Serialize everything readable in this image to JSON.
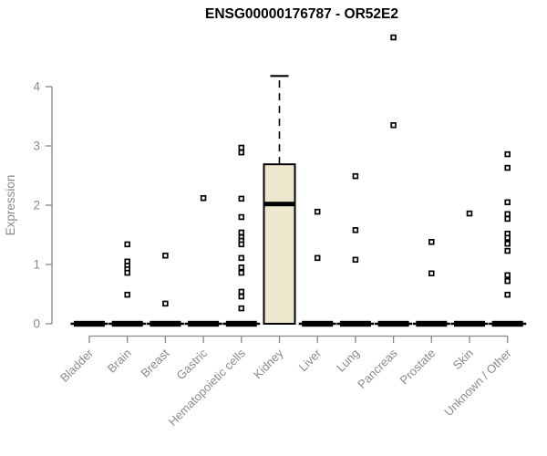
{
  "chart_data": {
    "type": "boxplot",
    "title": "ENSG00000176787 - OR52E2",
    "ylabel": "Expression",
    "xlabel": "",
    "ylim": [
      0,
      4
    ],
    "yticks": [
      0,
      1,
      2,
      3,
      4
    ],
    "grid": false,
    "legend": "none",
    "axis_color": "#878787",
    "text_color": "#8a8a8a",
    "box_fill": "#EDE8CD",
    "box_border": "#000000",
    "categories": [
      "Bladder",
      "Brain",
      "Breast",
      "Gastric",
      "Hematopoietic cells",
      "Kidney",
      "Liver",
      "Lung",
      "Pancreas",
      "Prostate",
      "Skin",
      "Unknown / Other"
    ],
    "series": [
      {
        "name": "Bladder",
        "whisker_low": 0,
        "q1": 0,
        "median": 0,
        "q3": 0,
        "whisker_high": 0,
        "outliers": []
      },
      {
        "name": "Brain",
        "whisker_low": 0,
        "q1": 0,
        "median": 0,
        "q3": 0,
        "whisker_high": 0,
        "outliers": [
          1.34,
          1.05,
          0.98,
          0.92,
          0.86,
          0.49
        ]
      },
      {
        "name": "Breast",
        "whisker_low": 0,
        "q1": 0,
        "median": 0,
        "q3": 0,
        "whisker_high": 0,
        "outliers": [
          1.15,
          0.34
        ]
      },
      {
        "name": "Gastric",
        "whisker_low": 0,
        "q1": 0,
        "median": 0,
        "q3": 0,
        "whisker_high": 0,
        "outliers": [
          2.12
        ]
      },
      {
        "name": "Hematopoietic cells",
        "whisker_low": 0,
        "q1": 0,
        "median": 0,
        "q3": 0,
        "whisker_high": 0,
        "outliers": [
          2.97,
          2.89,
          2.11,
          1.8,
          1.54,
          1.46,
          1.4,
          1.34,
          1.11,
          0.95,
          0.86,
          0.54,
          0.46,
          0.26
        ]
      },
      {
        "name": "Kidney",
        "whisker_low": 0,
        "q1": 0,
        "median": 2.02,
        "q3": 2.69,
        "whisker_high": 4.18,
        "outliers": []
      },
      {
        "name": "Liver",
        "whisker_low": 0,
        "q1": 0,
        "median": 0,
        "q3": 0,
        "whisker_high": 0,
        "outliers": [
          1.89,
          1.11
        ]
      },
      {
        "name": "Lung",
        "whisker_low": 0,
        "q1": 0,
        "median": 0,
        "q3": 0,
        "whisker_high": 0,
        "outliers": [
          2.49,
          1.58,
          1.08
        ]
      },
      {
        "name": "Pancreas",
        "whisker_low": 0,
        "q1": 0,
        "median": 0,
        "q3": 0,
        "whisker_high": 0,
        "outliers": [
          4.83,
          3.35
        ]
      },
      {
        "name": "Prostate",
        "whisker_low": 0,
        "q1": 0,
        "median": 0,
        "q3": 0,
        "whisker_high": 0,
        "outliers": [
          1.38,
          0.85
        ]
      },
      {
        "name": "Skin",
        "whisker_low": 0,
        "q1": 0,
        "median": 0,
        "q3": 0,
        "whisker_high": 0,
        "outliers": [
          1.86
        ]
      },
      {
        "name": "Unknown / Other",
        "whisker_low": 0,
        "q1": 0,
        "median": 0,
        "q3": 0,
        "whisker_high": 0,
        "outliers": [
          2.86,
          2.63,
          2.05,
          1.85,
          1.77,
          1.52,
          1.45,
          1.35,
          1.23,
          0.82,
          0.72,
          0.49
        ]
      }
    ]
  }
}
